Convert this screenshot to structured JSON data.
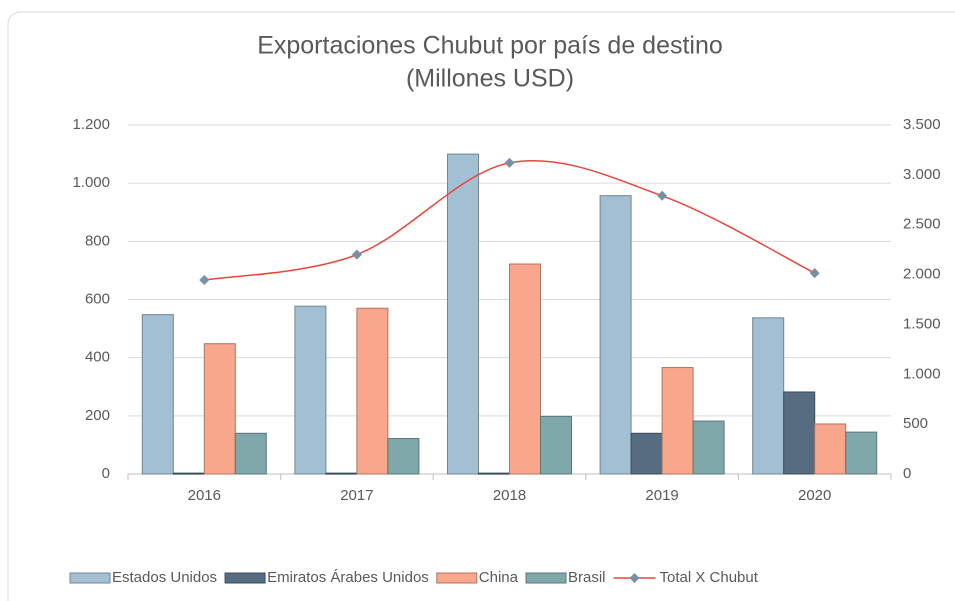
{
  "chart_data": {
    "type": "bar",
    "title": "Exportaciones Chubut por país de destino",
    "subtitle": "(Millones USD)",
    "categories": [
      "2016",
      "2017",
      "2018",
      "2019",
      "2020"
    ],
    "series": [
      {
        "name": "Estados Unidos",
        "color": "#a3bfd3",
        "values": [
          548,
          577,
          1100,
          957,
          537
        ]
      },
      {
        "name": "Emiratos Árabes Unidos",
        "color": "#566c80",
        "values": [
          3,
          3,
          3,
          140,
          282
        ]
      },
      {
        "name": "China",
        "color": "#f9a78c",
        "values": [
          448,
          570,
          722,
          366,
          172
        ]
      },
      {
        "name": "Brasil",
        "color": "#80a8aa",
        "values": [
          140,
          122,
          198,
          182,
          144
        ]
      },
      {
        "name": "Total X Chubut",
        "type": "line",
        "axis": "y2",
        "color": "#e8453c",
        "marker_color": "#7590a3",
        "values": [
          1945,
          2200,
          3120,
          2790,
          2015
        ]
      }
    ],
    "ylim": [
      0,
      1200
    ],
    "yticks": [
      0,
      200,
      400,
      600,
      800,
      {
        "value": 1000,
        "label": "1.000"
      },
      {
        "value": 1200,
        "label": "1.200"
      }
    ],
    "y2lim": [
      0,
      3500
    ],
    "y2ticks": [
      0,
      500,
      {
        "value": 1000,
        "label": "1.000"
      },
      {
        "value": 1500,
        "label": "1.500"
      },
      {
        "value": 2000,
        "label": "2.000"
      },
      {
        "value": 2500,
        "label": "2.500"
      },
      {
        "value": 3000,
        "label": "3.000"
      },
      {
        "value": 3500,
        "label": "3.500"
      }
    ],
    "grid": true,
    "legend": "bottom"
  }
}
